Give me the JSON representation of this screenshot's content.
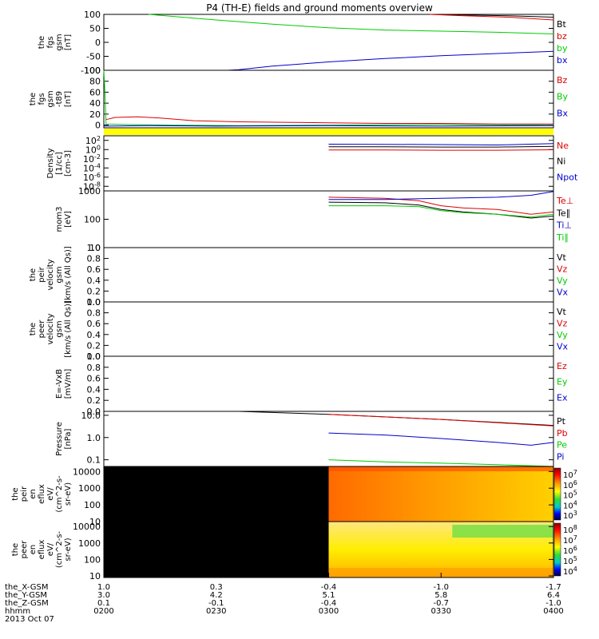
{
  "title": "P4 (TH-E) fields and ground moments overview",
  "time_axis": {
    "start": "02:00",
    "end": "04:00",
    "date_label": "2013 Oct 07",
    "row_labels": [
      "the_X-GSM",
      "the_Y-GSM",
      "the_Z-GSM",
      "hhmm"
    ],
    "ticks": [
      {
        "values": [
          "1.0",
          "3.0",
          "0.1",
          "0200"
        ]
      },
      {
        "values": [
          "0.3",
          "4.2",
          "-0.1",
          "0230"
        ]
      },
      {
        "values": [
          "-0.4",
          "5.1",
          "-0.4",
          "0300"
        ]
      },
      {
        "values": [
          "-1.0",
          "5.8",
          "-0.7",
          "0330"
        ]
      },
      {
        "values": [
          "-1.7",
          "6.4",
          "-1.0",
          "0400"
        ]
      }
    ]
  },
  "colors": {
    "black": "#000000",
    "red": "#dd0000",
    "green": "#00cc00",
    "blue": "#0000cc",
    "yellow": "#ffff00"
  },
  "chart_data": [
    {
      "type": "line",
      "ylabel_lines": [
        "the",
        "fgs",
        "gsm",
        "[nT]"
      ],
      "ylim": [
        -100,
        100
      ],
      "yticks": [
        "100",
        "50",
        "0",
        "-50",
        "-100"
      ],
      "legend": [
        {
          "label": "Bt",
          "color": "#000000"
        },
        {
          "label": "bz",
          "color": "#dd0000"
        },
        {
          "label": "by",
          "color": "#00cc00"
        },
        {
          "label": "bx",
          "color": "#0000cc"
        }
      ],
      "series": [
        {
          "name": "Bt",
          "color": "#000000",
          "x": [
            3.45,
            3.6,
            3.8,
            4.0
          ],
          "y": [
            100,
            98,
            95,
            90
          ]
        },
        {
          "name": "bz",
          "color": "#dd0000",
          "x": [
            3.45,
            3.6,
            3.8,
            4.0
          ],
          "y": [
            100,
            95,
            90,
            80
          ]
        },
        {
          "name": "by",
          "color": "#00cc00",
          "x": [
            2.2,
            2.5,
            2.75,
            3.0,
            3.25,
            3.5,
            3.75,
            4.0
          ],
          "y": [
            100,
            80,
            65,
            52,
            44,
            40,
            36,
            30
          ]
        },
        {
          "name": "bx",
          "color": "#0000cc",
          "x": [
            2.55,
            2.6,
            2.75,
            3.0,
            3.25,
            3.5,
            3.75,
            4.0
          ],
          "y": [
            -100,
            -98,
            -85,
            -70,
            -58,
            -48,
            -40,
            -32
          ]
        }
      ]
    },
    {
      "type": "line",
      "ylabel_lines": [
        "the",
        "fgs",
        "gsm",
        "-t89",
        "[nT]"
      ],
      "ylim": [
        -5,
        100
      ],
      "yticks": [
        "100",
        "80",
        "60",
        "40",
        "20",
        "0"
      ],
      "legend": [
        {
          "label": "Bz",
          "color": "#dd0000"
        },
        {
          "label": "By",
          "color": "#00cc00"
        },
        {
          "label": "Bx",
          "color": "#0000cc"
        }
      ],
      "series": [
        {
          "name": "Bz",
          "color": "#dd0000",
          "x": [
            2.01,
            2.05,
            2.15,
            2.25,
            2.4,
            2.6,
            2.8,
            3.0,
            3.25,
            3.5,
            3.75,
            4.0
          ],
          "y": [
            10,
            14,
            15,
            13,
            8,
            6,
            5,
            4,
            3,
            3,
            2,
            2
          ]
        },
        {
          "name": "By",
          "color": "#00cc00",
          "x": [
            2.0,
            2.005,
            2.01,
            2.1,
            2.3,
            2.6,
            3.0,
            3.5,
            4.0
          ],
          "y": [
            100,
            60,
            2,
            1,
            0,
            -1,
            0,
            1,
            0
          ]
        },
        {
          "name": "Bx",
          "color": "#0000cc",
          "x": [
            2.0,
            2.2,
            2.5,
            3.0,
            3.5,
            4.0
          ],
          "y": [
            -2,
            -1,
            -2,
            -1,
            -2,
            -1
          ]
        }
      ]
    },
    {
      "type": "line",
      "ylabel_lines": [
        "Density",
        "[1/cc]",
        "[cm-3]"
      ],
      "yscale": "log",
      "ylim": [
        1e-09,
        1000
      ],
      "yticks": [
        "10^2",
        "10^0",
        "10^-2",
        "10^-4",
        "10^-6",
        "10^-8"
      ],
      "legend": [
        {
          "label": "Ne",
          "color": "#dd0000"
        },
        {
          "label": "Ni",
          "color": "#000000"
        },
        {
          "label": "Npot",
          "color": "#0000cc"
        }
      ],
      "series": [
        {
          "name": "Ne",
          "color": "#dd0000",
          "x": [
            3.0,
            3.25,
            3.5,
            3.75,
            4.0
          ],
          "y": [
            0.8,
            0.8,
            0.7,
            0.7,
            0.9
          ]
        },
        {
          "name": "Ni",
          "color": "#000000",
          "x": [
            3.0,
            3.25,
            3.5,
            3.75,
            4.0
          ],
          "y": [
            4,
            4,
            3.5,
            3.5,
            5
          ]
        },
        {
          "name": "Npot",
          "color": "#0000cc",
          "x": [
            3.0,
            3.25,
            3.5,
            3.75,
            4.0
          ],
          "y": [
            15,
            14,
            12,
            10,
            20
          ]
        }
      ]
    },
    {
      "type": "line",
      "ylabel_lines": [
        "mom3",
        "[eV]"
      ],
      "yscale": "log",
      "ylim": [
        10,
        1000
      ],
      "yticks": [
        "1000",
        "100",
        "10"
      ],
      "legend": [
        {
          "label": "Te⊥",
          "color": "#dd0000"
        },
        {
          "label": "Te∥",
          "color": "#000000"
        },
        {
          "label": "Ti⊥",
          "color": "#0000cc"
        },
        {
          "label": "Ti∥",
          "color": "#00cc00"
        }
      ],
      "series": [
        {
          "name": "Te⊥",
          "color": "#dd0000",
          "x": [
            3.0,
            3.25,
            3.4,
            3.5,
            3.6,
            3.75,
            3.9,
            4.0
          ],
          "y": [
            600,
            550,
            450,
            300,
            250,
            220,
            150,
            180
          ]
        },
        {
          "name": "Te∥",
          "color": "#000000",
          "x": [
            3.0,
            3.25,
            3.4,
            3.5,
            3.6,
            3.75,
            3.9,
            4.0
          ],
          "y": [
            400,
            380,
            320,
            220,
            180,
            150,
            110,
            130
          ]
        },
        {
          "name": "Ti⊥",
          "color": "#0000cc",
          "x": [
            3.0,
            3.25,
            3.5,
            3.75,
            3.9,
            4.0
          ],
          "y": [
            500,
            500,
            550,
            600,
            700,
            950
          ]
        },
        {
          "name": "Ti∥",
          "color": "#00cc00",
          "x": [
            3.0,
            3.25,
            3.4,
            3.5,
            3.6,
            3.75,
            3.9,
            4.0
          ],
          "y": [
            300,
            300,
            280,
            200,
            170,
            150,
            120,
            150
          ]
        }
      ]
    },
    {
      "type": "line",
      "ylabel_lines": [
        "the",
        "peir",
        "velocity",
        "gsm",
        "[km/s (All Qs)]"
      ],
      "ylim": [
        0,
        1
      ],
      "yticks": [
        "1.0",
        "0.8",
        "0.6",
        "0.4",
        "0.2",
        "0.0"
      ],
      "legend": [
        {
          "label": "Vt",
          "color": "#000000"
        },
        {
          "label": "Vz",
          "color": "#dd0000"
        },
        {
          "label": "Vy",
          "color": "#00cc00"
        },
        {
          "label": "Vx",
          "color": "#0000cc"
        }
      ],
      "series": []
    },
    {
      "type": "line",
      "ylabel_lines": [
        "the",
        "peer",
        "velocity",
        "gsm",
        "[km/s (All Qs)]"
      ],
      "ylim": [
        0,
        1
      ],
      "yticks": [
        "1.0",
        "0.8",
        "0.6",
        "0.4",
        "0.2",
        "0.0"
      ],
      "legend": [
        {
          "label": "Vt",
          "color": "#000000"
        },
        {
          "label": "Vz",
          "color": "#dd0000"
        },
        {
          "label": "Vy",
          "color": "#00cc00"
        },
        {
          "label": "Vx",
          "color": "#0000cc"
        }
      ],
      "series": []
    },
    {
      "type": "line",
      "ylabel_lines": [
        "E=-VxB",
        "[mV/m]"
      ],
      "ylim": [
        0,
        1
      ],
      "yticks": [
        "1.0",
        "0.8",
        "0.6",
        "0.4",
        "0.2",
        "0.0"
      ],
      "legend": [
        {
          "label": "Ez",
          "color": "#dd0000"
        },
        {
          "label": "Ey",
          "color": "#00cc00"
        },
        {
          "label": "Ex",
          "color": "#0000cc"
        }
      ],
      "series": []
    },
    {
      "type": "line",
      "ylabel_lines": [
        "Pressure",
        "[nPa]"
      ],
      "yscale": "log",
      "ylim": [
        0.05,
        15
      ],
      "yticks": [
        "10.0",
        "1.0",
        "0.1"
      ],
      "legend": [
        {
          "label": "Pt",
          "color": "#000000"
        },
        {
          "label": "Pb",
          "color": "#dd0000"
        },
        {
          "label": "Pe",
          "color": "#00cc00"
        },
        {
          "label": "Pi",
          "color": "#0000cc"
        }
      ],
      "series": [
        {
          "name": "Pt",
          "color": "#000000",
          "x": [
            2.6,
            3.0,
            3.5,
            4.0
          ],
          "y": [
            15,
            11,
            6.5,
            3.5
          ]
        },
        {
          "name": "Pb",
          "color": "#dd0000",
          "x": [
            3.0,
            3.5,
            4.0
          ],
          "y": [
            11,
            6.5,
            3.3
          ]
        },
        {
          "name": "Pe",
          "color": "#00cc00",
          "x": [
            3.0,
            3.25,
            3.5,
            3.75,
            4.0
          ],
          "y": [
            0.1,
            0.08,
            0.07,
            0.06,
            0.05
          ]
        },
        {
          "name": "Pi",
          "color": "#0000cc",
          "x": [
            3.0,
            3.25,
            3.5,
            3.75,
            3.9,
            4.0
          ],
          "y": [
            1.6,
            1.3,
            0.9,
            0.6,
            0.45,
            0.6
          ]
        }
      ]
    },
    {
      "type": "heatmap",
      "ylabel_lines": [
        "the",
        "peir",
        "en",
        "eflux",
        "eV/",
        "(cm^2-s-",
        "sr-eV)"
      ],
      "yscale": "log",
      "ylim": [
        10,
        20000
      ],
      "yticks": [
        "10000",
        "1000",
        "100",
        "10"
      ],
      "no_data_before": 3.0,
      "colorbar_ticks": [
        "10^7",
        "10^6",
        "10^5",
        "10^4",
        "10^3"
      ]
    },
    {
      "type": "heatmap",
      "ylabel_lines": [
        "the",
        "peer",
        "en",
        "eflux",
        "eV/",
        "(cm^2-s-",
        "sr-eV)"
      ],
      "yscale": "log",
      "ylim": [
        8,
        20000
      ],
      "yticks": [
        "10000",
        "1000",
        "100",
        "10"
      ],
      "no_data_before": 3.0,
      "colorbar_ticks": [
        "10^8",
        "10^7",
        "10^6",
        "10^5",
        "10^4"
      ]
    }
  ]
}
